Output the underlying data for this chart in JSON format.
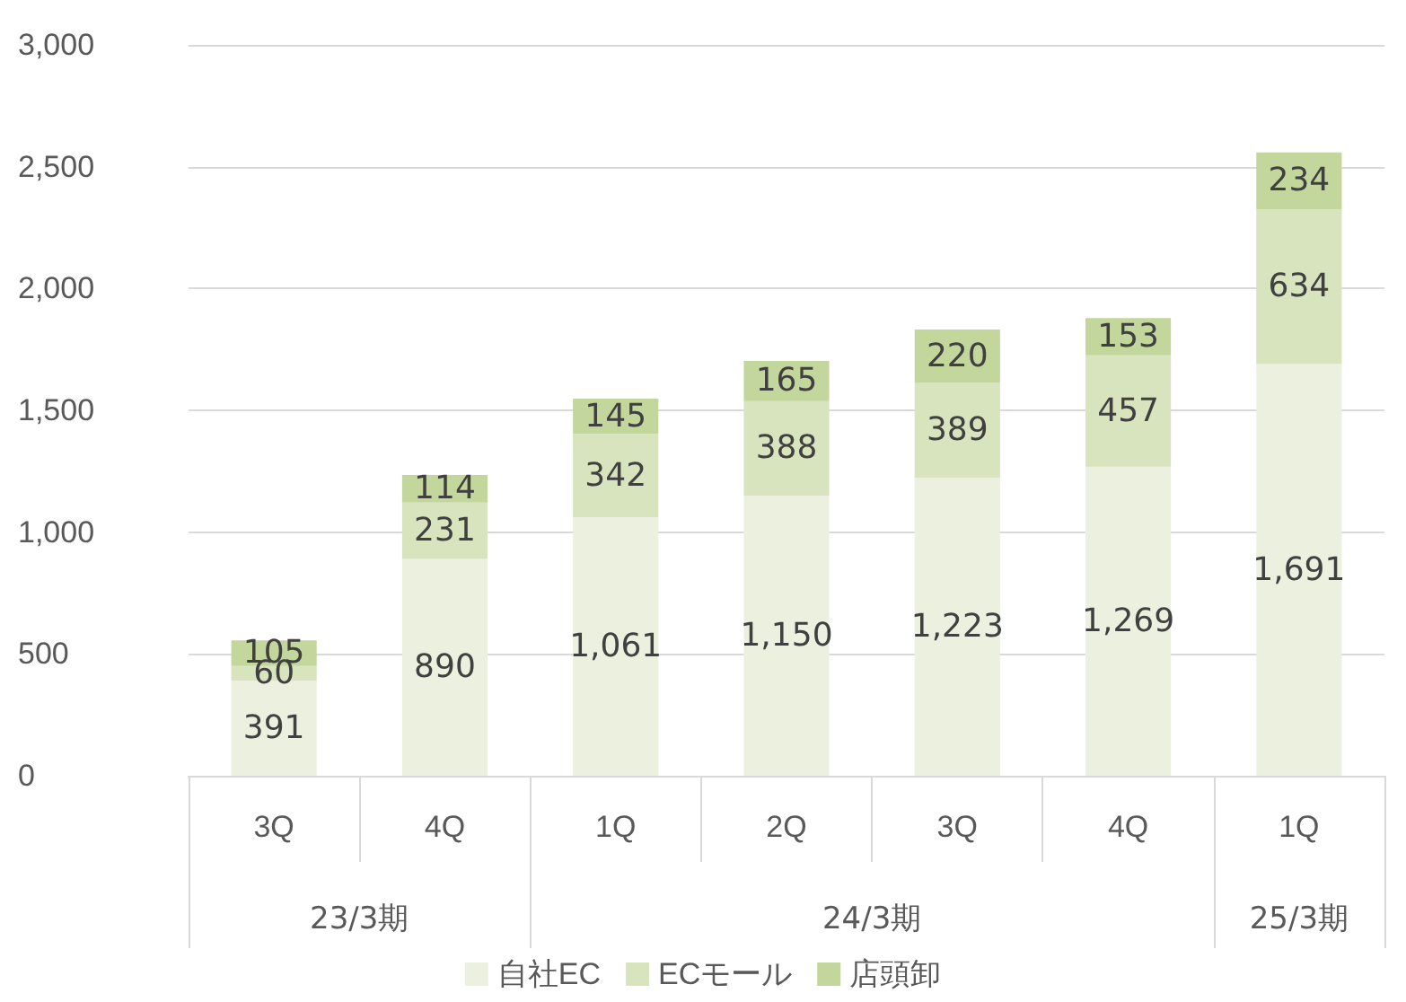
{
  "chart_data": {
    "type": "bar",
    "stacked": true,
    "categories": [
      "3Q",
      "4Q",
      "1Q",
      "2Q",
      "3Q",
      "4Q",
      "1Q"
    ],
    "series": [
      {
        "name": "自社EC",
        "color": "#ebf1de",
        "values": [
          391,
          890,
          1061,
          1150,
          1223,
          1269,
          1691
        ],
        "value_labels": [
          "391",
          "890",
          "1,061",
          "1,150",
          "1,223",
          "1,269",
          "1,691"
        ]
      },
      {
        "name": "ECモール",
        "color": "#d7e4bd",
        "values": [
          60,
          231,
          342,
          388,
          389,
          457,
          634
        ],
        "value_labels": [
          "60",
          "231",
          "342",
          "388",
          "389",
          "457",
          "634"
        ]
      },
      {
        "name": "店頭卸",
        "color": "#c3d69b",
        "values": [
          105,
          114,
          145,
          165,
          220,
          153,
          234
        ],
        "value_labels": [
          "105",
          "114",
          "145",
          "165",
          "220",
          "153",
          "234"
        ]
      }
    ],
    "annotations": [
      "23/3期",
      "24/3期",
      "25/3期"
    ],
    "ylim": [
      0,
      3000
    ],
    "yticks": [
      0,
      500,
      {
        "value": 1000,
        "label": "1,000"
      },
      {
        "value": 1500,
        "label": "1,500"
      },
      {
        "value": 2000,
        "label": "2,000"
      },
      {
        "value": 2500,
        "label": "2,500"
      },
      {
        "value": 3000,
        "label": "3,000"
      }
    ],
    "grid": "y",
    "legend": "bottom"
  }
}
